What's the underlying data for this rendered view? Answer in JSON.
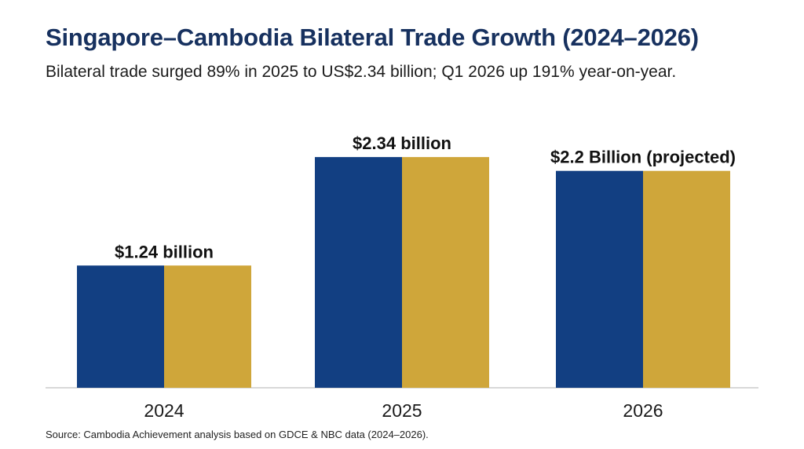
{
  "chart_title": "Singapore–Cambodia Bilateral Trade Growth (2024–2026)",
  "chart_subtitle": "Bilateral trade surged 89% in 2025 to US$2.34 billion; Q1 2026 up 191% year-on-year.",
  "source_note": "Source: Cambodia Achievement analysis based on GDCE & NBC data (2024–2026).",
  "colors": {
    "blue": "#123f82",
    "gold": "#cfa63a",
    "axis": "#cccccc",
    "text": "#111111"
  },
  "chart_data": {
    "type": "bar",
    "categories": [
      "2024",
      "2025",
      "2026"
    ],
    "values": [
      1.24,
      2.34,
      2.2
    ],
    "data_labels": [
      "$1.24 billion",
      "$2.34 billion",
      "$2.2 Billion (projected)"
    ],
    "title": "Singapore–Cambodia Bilateral Trade Growth (2024–2026)",
    "xlabel": "",
    "ylabel": "",
    "ylim": [
      0,
      2.6
    ],
    "grid": false,
    "legend": "none"
  }
}
